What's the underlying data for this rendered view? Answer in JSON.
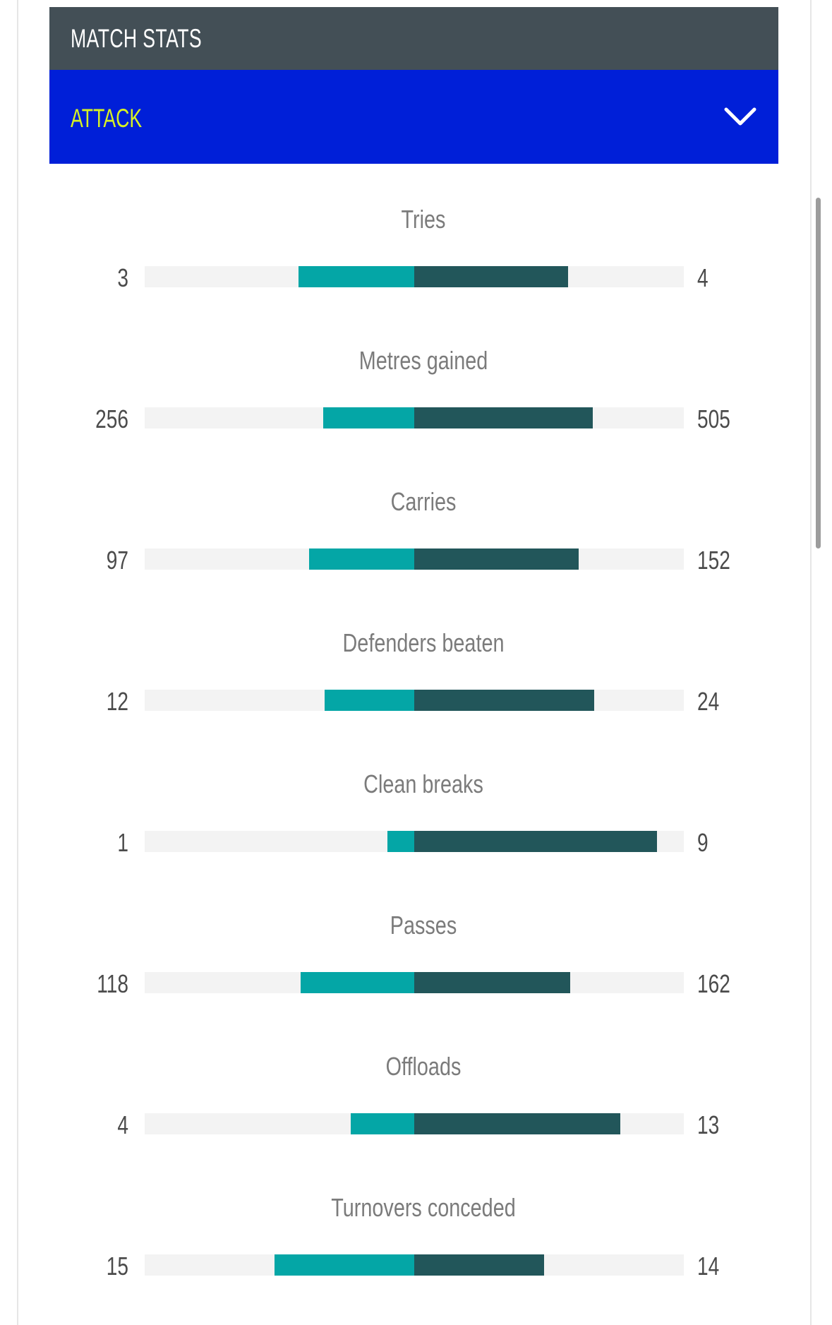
{
  "header": {
    "title": "MATCH STATS"
  },
  "section": {
    "title": "ATTACK",
    "toggle_icon": "chevron-down-icon"
  },
  "colors": {
    "header_bg": "#434f56",
    "section_bg": "#001fd8",
    "section_text": "#d7f223",
    "home_bar": "#04a6a6",
    "away_bar": "#22565a",
    "track": "#f3f3f3"
  },
  "stats": [
    {
      "label": "Tries",
      "home": "3",
      "away": "4"
    },
    {
      "label": "Metres gained",
      "home": "256",
      "away": "505"
    },
    {
      "label": "Carries",
      "home": "97",
      "away": "152"
    },
    {
      "label": "Defenders beaten",
      "home": "12",
      "away": "24"
    },
    {
      "label": "Clean breaks",
      "home": "1",
      "away": "9"
    },
    {
      "label": "Passes",
      "home": "118",
      "away": "162"
    },
    {
      "label": "Offloads",
      "home": "4",
      "away": "13"
    },
    {
      "label": "Turnovers conceded",
      "home": "15",
      "away": "14"
    }
  ]
}
